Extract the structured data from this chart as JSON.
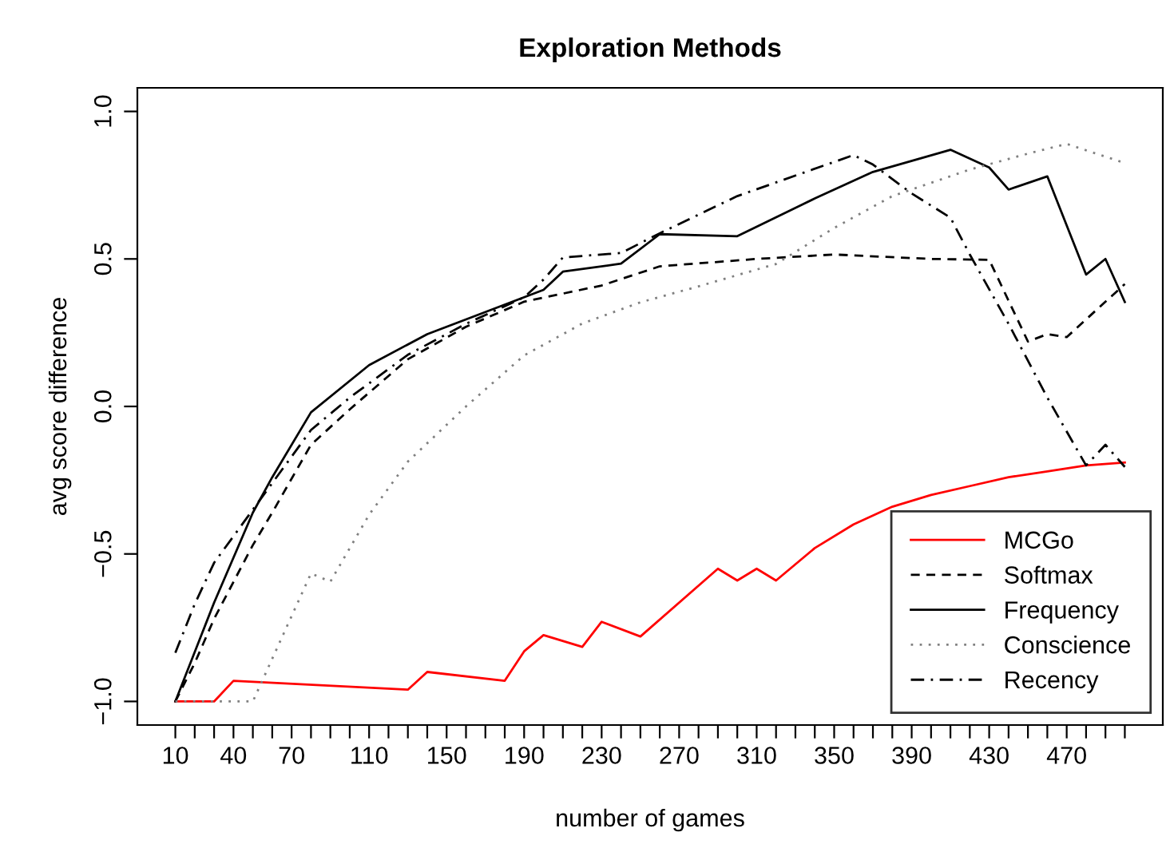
{
  "chart_data": {
    "type": "line",
    "title": "Exploration Methods",
    "xlabel": "number of games",
    "ylabel": "avg score difference",
    "xlim": [
      -9.6,
      519.6
    ],
    "ylim": [
      -1.08,
      1.08
    ],
    "xticks": [
      10,
      {
        "value": 20,
        "label": null
      },
      {
        "value": 30,
        "label": null
      },
      40,
      {
        "value": 50,
        "label": null
      },
      {
        "value": 60,
        "label": null
      },
      70,
      {
        "value": 80,
        "label": null
      },
      {
        "value": 90,
        "label": null
      },
      {
        "value": 100,
        "label": null
      },
      110,
      {
        "value": 120,
        "label": null
      },
      {
        "value": 130,
        "label": null
      },
      {
        "value": 140,
        "label": null
      },
      150,
      {
        "value": 160,
        "label": null
      },
      {
        "value": 170,
        "label": null
      },
      {
        "value": 180,
        "label": null
      },
      190,
      {
        "value": 200,
        "label": null
      },
      {
        "value": 210,
        "label": null
      },
      {
        "value": 220,
        "label": null
      },
      230,
      {
        "value": 240,
        "label": null
      },
      {
        "value": 250,
        "label": null
      },
      {
        "value": 260,
        "label": null
      },
      270,
      {
        "value": 280,
        "label": null
      },
      {
        "value": 290,
        "label": null
      },
      {
        "value": 300,
        "label": null
      },
      310,
      {
        "value": 320,
        "label": null
      },
      {
        "value": 330,
        "label": null
      },
      {
        "value": 340,
        "label": null
      },
      350,
      {
        "value": 360,
        "label": null
      },
      {
        "value": 370,
        "label": null
      },
      {
        "value": 380,
        "label": null
      },
      390,
      {
        "value": 400,
        "label": null
      },
      {
        "value": 410,
        "label": null
      },
      {
        "value": 420,
        "label": null
      },
      430,
      {
        "value": 440,
        "label": null
      },
      {
        "value": 450,
        "label": null
      },
      {
        "value": 460,
        "label": null
      },
      470,
      {
        "value": 480,
        "label": null
      },
      {
        "value": 490,
        "label": null
      },
      {
        "value": 500,
        "label": null
      }
    ],
    "yticks": [
      {
        "value": -1.0,
        "label": "−1.0"
      },
      {
        "value": -0.5,
        "label": "−0.5"
      },
      {
        "value": 0.0,
        "label": "0.0"
      },
      {
        "value": 0.5,
        "label": "0.5"
      },
      {
        "value": 1.0,
        "label": "1.0"
      }
    ],
    "grid": false,
    "legend": "bottom right",
    "series": [
      {
        "name": "MCGo",
        "color": "#ff0000",
        "line_style": "solid",
        "x": [
          10,
          30,
          40,
          130,
          140,
          180,
          190,
          200,
          220,
          230,
          250,
          290,
          300,
          310,
          320,
          340,
          360,
          380,
          400,
          420,
          440,
          460,
          480,
          500
        ],
        "values": [
          -1.0,
          -1.0,
          -0.93,
          -0.96,
          -0.9,
          -0.93,
          -0.83,
          -0.775,
          -0.815,
          -0.73,
          -0.78,
          -0.55,
          -0.59,
          -0.55,
          -0.59,
          -0.48,
          -0.4,
          -0.34,
          -0.3,
          -0.27,
          -0.24,
          -0.22,
          -0.2,
          -0.19
        ]
      },
      {
        "name": "Softmax",
        "color": "#000000",
        "line_style": "dashed",
        "x": [
          10,
          20,
          30,
          50,
          60,
          80,
          100,
          130,
          160,
          190,
          230,
          260,
          310,
          350,
          400,
          430,
          450,
          460,
          470,
          500
        ],
        "values": [
          -1.0,
          -0.87,
          -0.72,
          -0.47,
          -0.36,
          -0.13,
          -0.01,
          0.16,
          0.27,
          0.355,
          0.41,
          0.475,
          0.5,
          0.515,
          0.5,
          0.497,
          0.22,
          0.245,
          0.235,
          0.415
        ]
      },
      {
        "name": "Frequency",
        "color": "#000000",
        "line_style": "solid",
        "x": [
          10,
          30,
          50,
          60,
          80,
          110,
          140,
          170,
          190,
          200,
          210,
          240,
          260,
          300,
          340,
          370,
          410,
          430,
          440,
          460,
          480,
          490,
          500
        ],
        "values": [
          -1.0,
          -0.665,
          -0.36,
          -0.24,
          -0.02,
          0.14,
          0.245,
          0.32,
          0.37,
          0.395,
          0.457,
          0.484,
          0.584,
          0.577,
          0.705,
          0.795,
          0.87,
          0.81,
          0.735,
          0.78,
          0.447,
          0.5,
          0.354
        ]
      },
      {
        "name": "Conscience",
        "color": "#808080",
        "line_style": "dotted",
        "x": [
          10,
          50,
          80,
          90,
          110,
          130,
          160,
          190,
          220,
          250,
          280,
          320,
          350,
          380,
          420,
          450,
          470,
          500
        ],
        "values": [
          -1.0,
          -1.0,
          -0.566,
          -0.594,
          -0.367,
          -0.187,
          0.0,
          0.173,
          0.281,
          0.353,
          0.407,
          0.483,
          0.605,
          0.713,
          0.803,
          0.857,
          0.89,
          0.825
        ]
      },
      {
        "name": "Recency",
        "color": "#000000",
        "line_style": "dashdot",
        "x": [
          10,
          20,
          30,
          40,
          50,
          60,
          70,
          80,
          100,
          130,
          160,
          190,
          200,
          210,
          240,
          260,
          300,
          360,
          370,
          390,
          410,
          420,
          440,
          460,
          480,
          490,
          500
        ],
        "values": [
          -0.835,
          -0.67,
          -0.53,
          -0.44,
          -0.35,
          -0.26,
          -0.17,
          -0.08,
          0.03,
          0.175,
          0.28,
          0.37,
          0.43,
          0.505,
          0.52,
          0.587,
          0.713,
          0.852,
          0.82,
          0.722,
          0.64,
          0.515,
          0.28,
          0.03,
          -0.2,
          -0.13,
          -0.205
        ]
      }
    ]
  }
}
